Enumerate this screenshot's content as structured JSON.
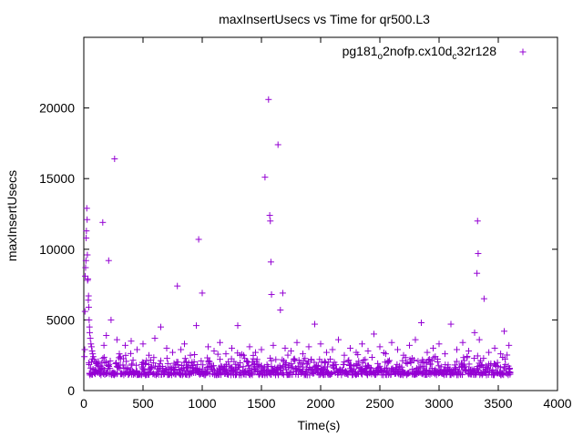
{
  "chart_data": {
    "type": "scatter",
    "title": "maxInsertUsecs vs Time for qr500.L3",
    "xlabel": "Time(s)",
    "ylabel": "maxInsertUsecs",
    "xlim": [
      0,
      4000
    ],
    "ylim": [
      0,
      25000
    ],
    "xticks": [
      0,
      500,
      1000,
      1500,
      2000,
      2500,
      3000,
      3500,
      4000
    ],
    "yticks": [
      0,
      5000,
      10000,
      15000,
      20000
    ],
    "grid": false,
    "legend_position": "top-right",
    "marker": "plus",
    "series": [
      {
        "name_parts": [
          "pg181",
          "o",
          "2nofp.cx10d",
          "c",
          "32r128"
        ],
        "color": "#9400d3",
        "points": [
          [
            5,
            2400
          ],
          [
            8,
            2900
          ],
          [
            10,
            5600
          ],
          [
            12,
            8100
          ],
          [
            15,
            8700
          ],
          [
            18,
            9200
          ],
          [
            20,
            10800
          ],
          [
            22,
            11300
          ],
          [
            25,
            12900
          ],
          [
            28,
            12100
          ],
          [
            30,
            9600
          ],
          [
            32,
            7800
          ],
          [
            35,
            7900
          ],
          [
            38,
            6400
          ],
          [
            40,
            6700
          ],
          [
            42,
            5900
          ],
          [
            45,
            5000
          ],
          [
            48,
            4500
          ],
          [
            50,
            4100
          ],
          [
            55,
            3700
          ],
          [
            60,
            3300
          ],
          [
            65,
            3100
          ],
          [
            70,
            2800
          ],
          [
            75,
            2600
          ],
          [
            80,
            2400
          ],
          [
            90,
            2200
          ],
          [
            100,
            2000
          ],
          [
            110,
            1900
          ],
          [
            125,
            1800
          ],
          [
            140,
            1700
          ],
          [
            160,
            11900
          ],
          [
            170,
            3200
          ],
          [
            190,
            3900
          ],
          [
            210,
            9200
          ],
          [
            230,
            5000
          ],
          [
            260,
            16400
          ],
          [
            280,
            3600
          ],
          [
            300,
            2600
          ],
          [
            350,
            3200
          ],
          [
            400,
            3500
          ],
          [
            450,
            2900
          ],
          [
            500,
            3300
          ],
          [
            550,
            2500
          ],
          [
            600,
            3700
          ],
          [
            650,
            4500
          ],
          [
            700,
            3000
          ],
          [
            750,
            2700
          ],
          [
            790,
            7400
          ],
          [
            820,
            2900
          ],
          [
            850,
            3300
          ],
          [
            900,
            2500
          ],
          [
            950,
            4600
          ],
          [
            970,
            10700
          ],
          [
            1000,
            6900
          ],
          [
            1050,
            3100
          ],
          [
            1100,
            2800
          ],
          [
            1150,
            3400
          ],
          [
            1200,
            2600
          ],
          [
            1250,
            3000
          ],
          [
            1300,
            4600
          ],
          [
            1350,
            2500
          ],
          [
            1400,
            3100
          ],
          [
            1450,
            2700
          ],
          [
            1500,
            2900
          ],
          [
            1530,
            15100
          ],
          [
            1560,
            20600
          ],
          [
            1570,
            12400
          ],
          [
            1575,
            12000
          ],
          [
            1580,
            9100
          ],
          [
            1585,
            6800
          ],
          [
            1600,
            3200
          ],
          [
            1640,
            17400
          ],
          [
            1660,
            5700
          ],
          [
            1680,
            6900
          ],
          [
            1700,
            3000
          ],
          [
            1750,
            2800
          ],
          [
            1800,
            3400
          ],
          [
            1850,
            2600
          ],
          [
            1900,
            3100
          ],
          [
            1950,
            4700
          ],
          [
            2000,
            3300
          ],
          [
            2050,
            2700
          ],
          [
            2100,
            2900
          ],
          [
            2150,
            3600
          ],
          [
            2200,
            2500
          ],
          [
            2250,
            3000
          ],
          [
            2300,
            2700
          ],
          [
            2350,
            3300
          ],
          [
            2400,
            2800
          ],
          [
            2450,
            4000
          ],
          [
            2500,
            3100
          ],
          [
            2550,
            2600
          ],
          [
            2600,
            3400
          ],
          [
            2650,
            2900
          ],
          [
            2700,
            2500
          ],
          [
            2750,
            3200
          ],
          [
            2800,
            3600
          ],
          [
            2850,
            4800
          ],
          [
            2900,
            2700
          ],
          [
            2950,
            3000
          ],
          [
            3000,
            3300
          ],
          [
            3050,
            2600
          ],
          [
            3100,
            4700
          ],
          [
            3150,
            2900
          ],
          [
            3200,
            3400
          ],
          [
            3250,
            2800
          ],
          [
            3300,
            4100
          ],
          [
            3320,
            8300
          ],
          [
            3325,
            12000
          ],
          [
            3330,
            9700
          ],
          [
            3340,
            3600
          ],
          [
            3380,
            6500
          ],
          [
            3420,
            2700
          ],
          [
            3470,
            3000
          ],
          [
            3520,
            2600
          ],
          [
            3550,
            4200
          ],
          [
            3590,
            3200
          ],
          [
            3600,
            1300
          ]
        ]
      }
    ]
  }
}
